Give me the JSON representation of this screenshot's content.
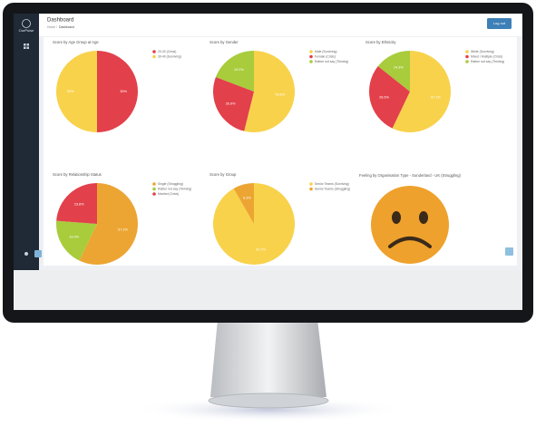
{
  "app": {
    "logo": "OurPulse",
    "page_title": "Dashboard",
    "breadcrumb": [
      "Home",
      "Dashboard"
    ],
    "button": "Log out"
  },
  "chart_data": [
    {
      "type": "pie",
      "title": "Score by Age Group at Age",
      "categories": [
        "20-30 (Crisis)",
        "30-40 (Surviving)"
      ],
      "values": [
        50,
        50
      ],
      "value_labels": [
        "50%",
        "50%"
      ],
      "colors": [
        "#e2404a",
        "#f8d24b"
      ]
    },
    {
      "type": "pie",
      "title": "Score by Gender",
      "categories": [
        "Male (Surviving)",
        "Female (Crisis)",
        "Rather not say (Thriving)"
      ],
      "values": [
        53.8,
        26.9,
        19.2
      ],
      "value_labels": [
        "53.8%",
        "26.9%",
        "19.2%"
      ],
      "colors": [
        "#f8d24b",
        "#e2404a",
        "#a8cc3c"
      ]
    },
    {
      "type": "pie",
      "title": "Score by Ethnicity",
      "categories": [
        "White (Surviving)",
        "Mixed / Multiple (Crisis)",
        "Rather not say (Thriving)"
      ],
      "values": [
        57.1,
        28.6,
        14.3
      ],
      "value_labels": [
        "57.1%",
        "28.6%",
        "14.3%"
      ],
      "colors": [
        "#f8d24b",
        "#e2404a",
        "#a8cc3c"
      ]
    },
    {
      "type": "pie",
      "title": "Score by Relationship Status",
      "categories": [
        "Single (Struggling)",
        "Rather not say (Thriving)",
        "Married (Crisis)"
      ],
      "values": [
        57.1,
        19.0,
        23.8
      ],
      "value_labels": [
        "57.1%",
        "19.0%",
        "23.8%"
      ],
      "colors": [
        "#eca532",
        "#a8cc3c",
        "#e2404a"
      ]
    },
    {
      "type": "pie",
      "title": "Score by Group",
      "categories": [
        "Senior Teams (Surviving)",
        "Senior Teams (Struggling)"
      ],
      "values": [
        91.7,
        8.3
      ],
      "value_labels": [
        "91.7%",
        "8.3%"
      ],
      "colors": [
        "#f8d24b",
        "#eca532"
      ]
    }
  ],
  "feeling": {
    "title": "Feeling by Organisation Type - Sunderland - UK (Struggling)"
  }
}
